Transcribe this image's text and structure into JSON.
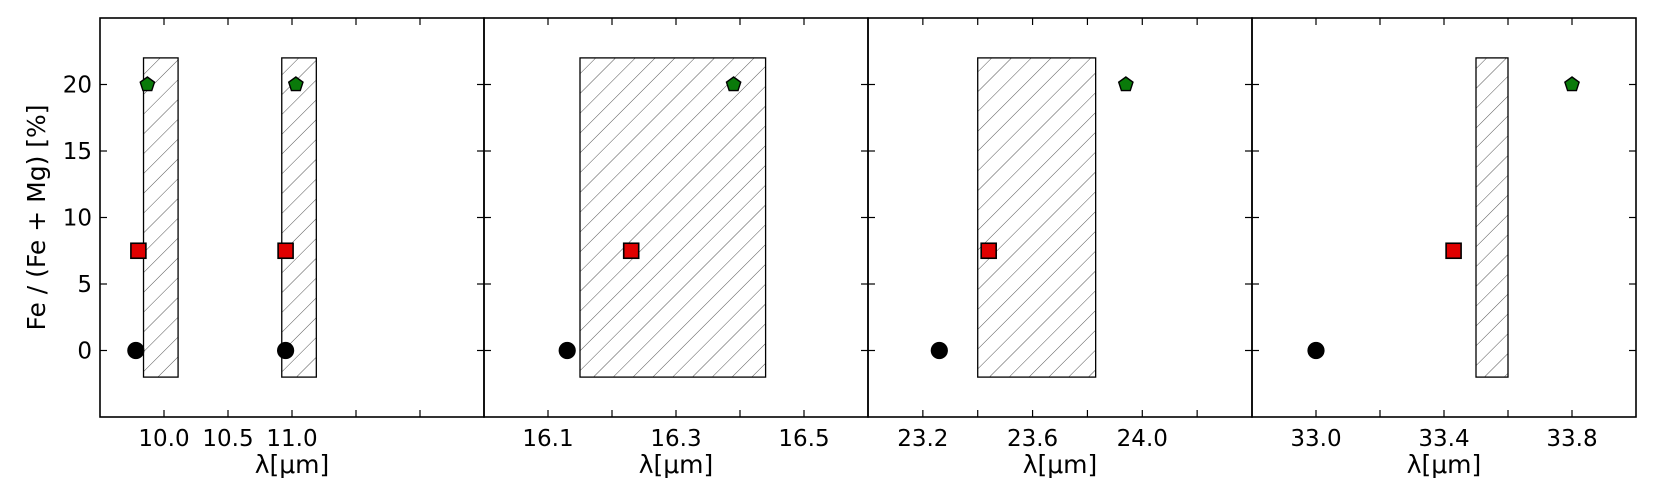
{
  "chart_data": {
    "type": "scatter",
    "ylabel": "Fe / (Fe + Mg) [%]",
    "ylim": [
      -5,
      25
    ],
    "yticks": [
      0,
      5,
      10,
      15,
      20
    ],
    "colors": {
      "circle": "#000000",
      "square": "#e00000",
      "pentagon": "#0a7a0a"
    },
    "panels": [
      {
        "xlabel": "λ[μm]",
        "xlim": [
          9.5,
          12.5
        ],
        "xticks": [
          10.0,
          10.5,
          11.0
        ],
        "xtick_labels": [
          "10.0",
          "10.5",
          "11.0"
        ],
        "minor_ticks": [
          9.5,
          10.0,
          10.5,
          11.0,
          11.5,
          12.0
        ],
        "bands": [
          {
            "x0": 9.84,
            "x1": 10.11,
            "y0": -2,
            "y1": 22
          },
          {
            "x0": 10.92,
            "x1": 11.19,
            "y0": -2,
            "y1": 22
          }
        ],
        "series": [
          {
            "marker": "circle",
            "points": [
              [
                9.78,
                0
              ],
              [
                10.95,
                0
              ]
            ]
          },
          {
            "marker": "square",
            "points": [
              [
                9.8,
                7.5
              ],
              [
                10.95,
                7.5
              ]
            ]
          },
          {
            "marker": "pentagon",
            "points": [
              [
                9.87,
                20
              ],
              [
                11.03,
                20
              ]
            ]
          }
        ]
      },
      {
        "xlabel": "λ[μm]",
        "xlim": [
          16.0,
          16.6
        ],
        "xticks": [
          16.1,
          16.3,
          16.5
        ],
        "xtick_labels": [
          "16.1",
          "16.3",
          "16.5"
        ],
        "minor_ticks": [
          16.0,
          16.1,
          16.2,
          16.3,
          16.4,
          16.5,
          16.6
        ],
        "bands": [
          {
            "x0": 16.15,
            "x1": 16.44,
            "y0": -2,
            "y1": 22
          }
        ],
        "series": [
          {
            "marker": "circle",
            "points": [
              [
                16.13,
                0
              ]
            ]
          },
          {
            "marker": "square",
            "points": [
              [
                16.23,
                7.5
              ]
            ]
          },
          {
            "marker": "pentagon",
            "points": [
              [
                16.39,
                20
              ]
            ]
          }
        ]
      },
      {
        "xlabel": "λ[μm]",
        "xlim": [
          23.0,
          24.4
        ],
        "xticks": [
          23.2,
          23.6,
          24.0
        ],
        "xtick_labels": [
          "23.2",
          "23.6",
          "24.0"
        ],
        "minor_ticks": [
          23.0,
          23.2,
          23.4,
          23.6,
          23.8,
          24.0,
          24.2,
          24.4
        ],
        "bands": [
          {
            "x0": 23.4,
            "x1": 23.83,
            "y0": -2,
            "y1": 22
          }
        ],
        "series": [
          {
            "marker": "circle",
            "points": [
              [
                23.26,
                0
              ]
            ]
          },
          {
            "marker": "square",
            "points": [
              [
                23.44,
                7.5
              ]
            ]
          },
          {
            "marker": "pentagon",
            "points": [
              [
                23.94,
                20
              ]
            ]
          }
        ]
      },
      {
        "xlabel": "λ[μm]",
        "xlim": [
          32.8,
          34.0
        ],
        "xticks": [
          33.0,
          33.4,
          33.8
        ],
        "xtick_labels": [
          "33.0",
          "33.4",
          "33.8"
        ],
        "minor_ticks": [
          32.8,
          33.0,
          33.2,
          33.4,
          33.6,
          33.8,
          34.0
        ],
        "bands": [
          {
            "x0": 33.5,
            "x1": 33.6,
            "y0": -2,
            "y1": 22
          }
        ],
        "series": [
          {
            "marker": "circle",
            "points": [
              [
                33.0,
                0
              ]
            ]
          },
          {
            "marker": "square",
            "points": [
              [
                33.43,
                7.5
              ]
            ]
          },
          {
            "marker": "pentagon",
            "points": [
              [
                33.8,
                20
              ]
            ]
          }
        ]
      }
    ]
  }
}
